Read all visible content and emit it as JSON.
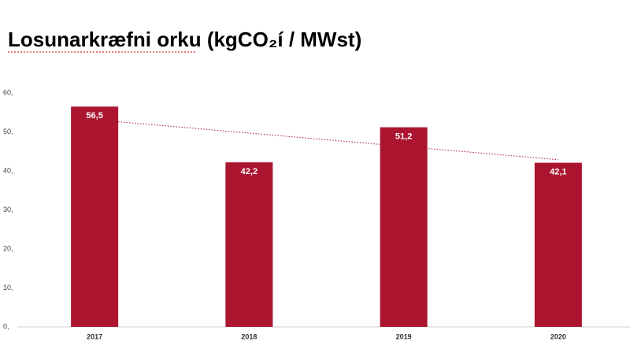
{
  "chart_data": {
    "type": "bar",
    "title": "Losunarkræfni orku (kgCO₂í / MWst)",
    "categories": [
      "2017",
      "2018",
      "2019",
      "2020"
    ],
    "values": [
      56.5,
      42.2,
      51.2,
      42.1
    ],
    "value_labels": [
      "56,5",
      "42,2",
      "51,2",
      "42,1"
    ],
    "color": "#ab1530",
    "ylim": [
      0,
      60
    ],
    "yticks": [
      {
        "value": 0,
        "label": "0,"
      },
      {
        "value": 10,
        "label": "10,"
      },
      {
        "value": 20,
        "label": "20,"
      },
      {
        "value": 30,
        "label": "30,"
      },
      {
        "value": 40,
        "label": "40,"
      },
      {
        "value": 50,
        "label": "50,"
      },
      {
        "value": 60,
        "label": "60,"
      }
    ],
    "grid": false,
    "trendline": true
  }
}
